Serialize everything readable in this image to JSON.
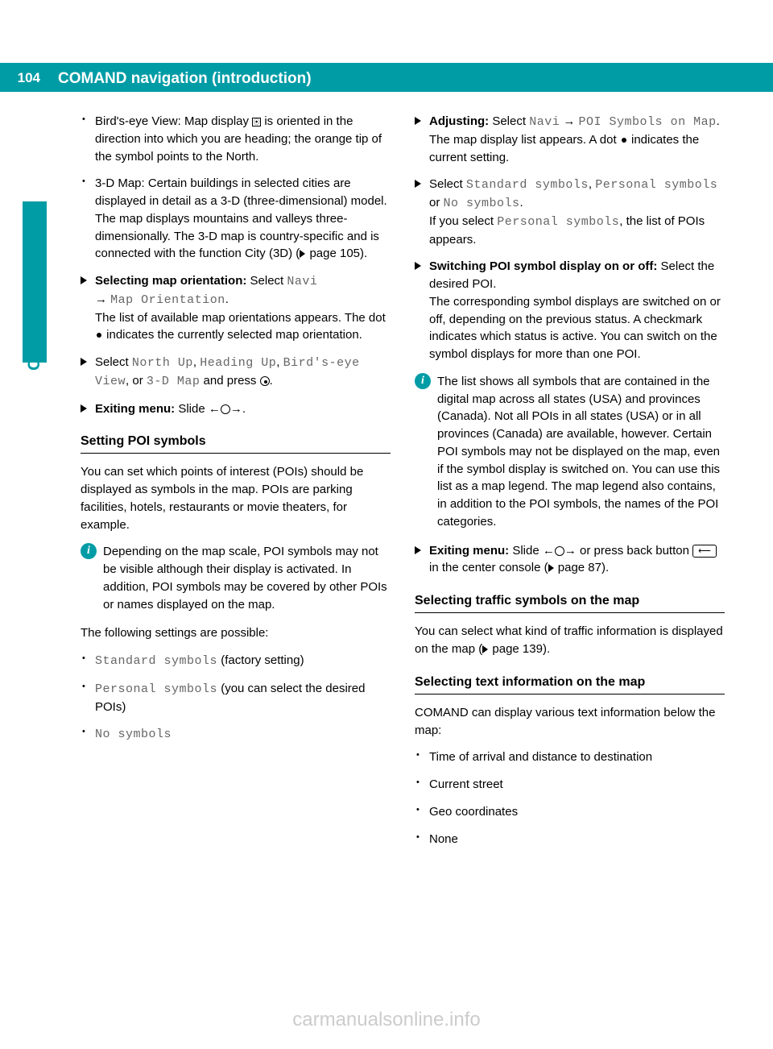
{
  "page_number": "104",
  "header_title": "COMAND navigation (introduction)",
  "side_label": "Control systems",
  "watermark": "carmanualsonline.info",
  "left": {
    "b1": "Bird's-eye View: Map display ",
    "b1b": " is oriented in the direction into which you are heading; the orange tip of the symbol points to the North.",
    "b2": "3-D Map: Certain buildings in selected cities are displayed in detail as a 3-D (three-dimensional) model. The map displays mountains and valleys three-dimensionally. The 3-D map is country-specific and is connected with the function City (3D) (",
    "b2b": " page 105).",
    "s1_bold": "Selecting map orientation:",
    "s1_after": " Select ",
    "s1_navi": "Navi",
    "s1_arrow": " → ",
    "s1_map": "Map Orientation",
    "s1_rest": "The list of available map orientations appears. The dot ",
    "s1_rest2": " indicates the currently selected map orientation.",
    "s2_pre": "Select ",
    "s2_nu": "North Up",
    "s2_c": ", ",
    "s2_hu": "Heading Up",
    "s2_be": "Bird's-eye View",
    "s2_or": ", or ",
    "s2_3d": "3-D Map",
    "s2_press": " and press ",
    "s3_bold": "Exiting menu:",
    "s3_after": " Slide ",
    "h_poi": "Setting POI symbols",
    "p_poi": "You can set which points of interest (POIs) should be displayed as symbols in the map. POIs are parking facilities, hotels, restaurants or movie theaters, for example.",
    "info1": "Depending on the map scale, POI symbols may not be visible although their display is activated. In addition, POI symbols may be covered by other POIs or names displayed on the map.",
    "p_follow": "The following settings are possible:",
    "opt1": "Standard symbols",
    "opt1_after": " (factory setting)",
    "opt2": "Personal symbols",
    "opt2_after": " (you can select the desired POIs)",
    "opt3": "No symbols"
  },
  "right": {
    "adj_bold": "Adjusting:",
    "adj_after": " Select ",
    "adj_navi": "Navi",
    "adj_arrow": " → ",
    "adj_poi": "POI Symbols on Map",
    "adj_p": "The map display list appears. A dot ",
    "adj_p2": " indicates the current setting.",
    "sel_pre": "Select ",
    "sel_std": "Standard symbols",
    "sel_c": ", ",
    "sel_per": "Personal symbols",
    "sel_or": " or ",
    "sel_no": "No symbols",
    "sel_p": "If you select ",
    "sel_per2": "Personal symbols",
    "sel_p2": ", the list of POIs appears.",
    "sw_bold": "Switching POI symbol display on or off:",
    "sw_after": " Select the desired POI.",
    "sw_p": "The corresponding symbol displays are switched on or off, depending on the previous status. A checkmark indicates which status is active. You can switch on the symbol displays for more than one POI.",
    "info2": "The list shows all symbols that are contained in the digital map across all states (USA) and provinces (Canada). Not all POIs in all states (USA) or in all provinces (Canada) are available, however. Certain POI symbols may not be displayed on the map, even if the symbol display is switched on. You can use this list as a map legend. The map legend also contains, in addition to the POI symbols, the names of the POI categories.",
    "ex_bold": "Exiting menu:",
    "ex_after": " Slide ",
    "ex_p": " or press back button ",
    "ex_p2": " in the center console (",
    "ex_p3": " page 87).",
    "h_traffic": "Selecting traffic symbols on the map",
    "p_traffic": "You can select what kind of traffic information is displayed on the map (",
    "p_traffic2": " page 139).",
    "h_text": "Selecting text information on the map",
    "p_text": "COMAND can display various text information below the map:",
    "t1": "Time of arrival and distance to destination",
    "t2": "Current street",
    "t3": "Geo coordinates",
    "t4": "None"
  }
}
